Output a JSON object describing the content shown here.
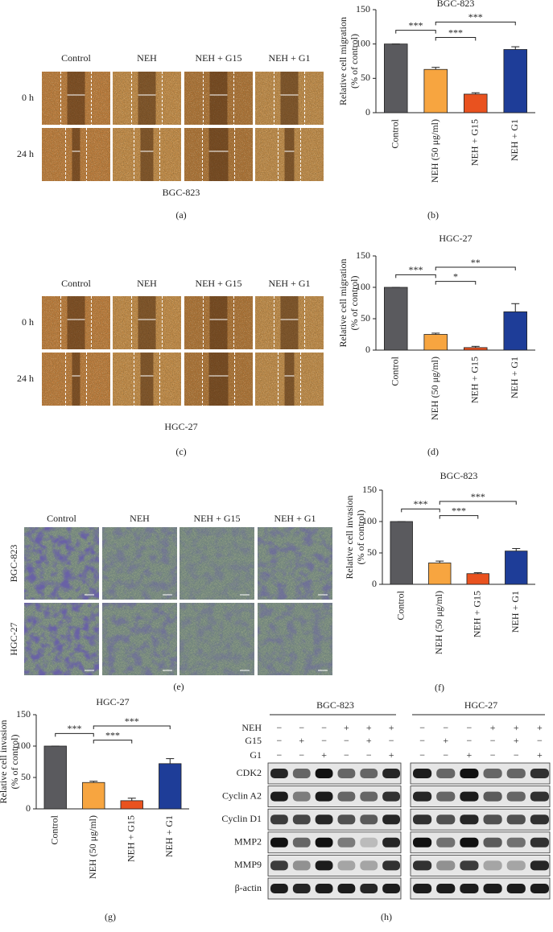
{
  "panel_labels": [
    "(a)",
    "(b)",
    "(c)",
    "(d)",
    "(e)",
    "(f)",
    "(g)",
    "(h)"
  ],
  "wound": [
    {
      "columns": [
        "Control",
        "NEH",
        "NEH + G15",
        "NEH + G1"
      ],
      "rows": [
        "0 h",
        "24 h"
      ],
      "caption": "BGC-823"
    },
    {
      "columns": [
        "Control",
        "NEH",
        "NEH + G15",
        "NEH + G1"
      ],
      "rows": [
        "0 h",
        "24 h"
      ],
      "caption": "HGC-27"
    }
  ],
  "invasion": {
    "columns": [
      "Control",
      "NEH",
      "NEH + G15",
      "NEH + G1"
    ],
    "rows": [
      "BGC-823",
      "HGC-27"
    ]
  },
  "chart_data": [
    {
      "type": "bar",
      "title": "BGC-823",
      "ylabel": [
        "Relative cell migration",
        "(% of control)"
      ],
      "categories": [
        "Control",
        "NEH (50 μg/ml)",
        "NEH + G15",
        "NEH + G1"
      ],
      "values": [
        100,
        63,
        27,
        92
      ],
      "errors": [
        0,
        3,
        2,
        4
      ],
      "colors": [
        "#5a5a5e",
        "#f7a540",
        "#e9521f",
        "#1e3d98"
      ],
      "ylim": [
        0,
        150
      ],
      "yticks": [
        0,
        50,
        100,
        150
      ],
      "significance": [
        {
          "pair": [
            0,
            1
          ],
          "label": "***"
        },
        {
          "pair": [
            1,
            2
          ],
          "label": "***"
        },
        {
          "pair": [
            1,
            3
          ],
          "label": "***"
        }
      ]
    },
    {
      "type": "bar",
      "title": "HGC-27",
      "ylabel": [
        "Relative cell migration",
        "(% of control)"
      ],
      "categories": [
        "Control",
        "NEH (50 μg/ml)",
        "NEH + G15",
        "NEH + G1"
      ],
      "values": [
        100,
        25,
        4,
        61
      ],
      "errors": [
        0,
        2,
        2,
        13
      ],
      "colors": [
        "#5a5a5e",
        "#f7a540",
        "#e9521f",
        "#1e3d98"
      ],
      "ylim": [
        0,
        150
      ],
      "yticks": [
        0,
        50,
        100,
        150
      ],
      "significance": [
        {
          "pair": [
            0,
            1
          ],
          "label": "***"
        },
        {
          "pair": [
            1,
            2
          ],
          "label": "*"
        },
        {
          "pair": [
            1,
            3
          ],
          "label": "**"
        }
      ]
    },
    {
      "type": "bar",
      "title": "BGC-823",
      "ylabel": [
        "Relative cell invasion",
        "(% of control)"
      ],
      "categories": [
        "Control",
        "NEH (50 μg/ml)",
        "NEH + G15",
        "NEH + G1"
      ],
      "values": [
        100,
        34,
        17,
        53
      ],
      "errors": [
        0,
        3,
        1.5,
        4
      ],
      "colors": [
        "#5a5a5e",
        "#f7a540",
        "#e9521f",
        "#1e3d98"
      ],
      "ylim": [
        0,
        150
      ],
      "yticks": [
        0,
        50,
        100,
        150
      ],
      "significance": [
        {
          "pair": [
            0,
            1
          ],
          "label": "***"
        },
        {
          "pair": [
            1,
            2
          ],
          "label": "***"
        },
        {
          "pair": [
            1,
            3
          ],
          "label": "***"
        }
      ]
    },
    {
      "type": "bar",
      "title": "HGC-27",
      "ylabel": [
        "Relative cell invasion",
        "(% of control)"
      ],
      "categories": [
        "Control",
        "NEH (50 μg/ml)",
        "NEH + G15",
        "NEH + G1"
      ],
      "values": [
        100,
        42,
        13,
        72
      ],
      "errors": [
        0,
        2,
        4,
        8
      ],
      "colors": [
        "#5a5a5e",
        "#f7a540",
        "#e9521f",
        "#1e3d98"
      ],
      "ylim": [
        0,
        150
      ],
      "yticks": [
        0,
        50,
        100,
        150
      ],
      "significance": [
        {
          "pair": [
            0,
            1
          ],
          "label": "***"
        },
        {
          "pair": [
            1,
            2
          ],
          "label": "***"
        },
        {
          "pair": [
            1,
            3
          ],
          "label": "***"
        }
      ]
    }
  ],
  "blot": {
    "groups": [
      "BGC-823",
      "HGC-27"
    ],
    "treatments": [
      {
        "name": "NEH",
        "signs": [
          "−",
          "−",
          "−",
          "+",
          "+",
          "+"
        ]
      },
      {
        "name": "G15",
        "signs": [
          "−",
          "+",
          "−",
          "−",
          "+",
          "−"
        ]
      },
      {
        "name": "G1",
        "signs": [
          "−",
          "−",
          "+",
          "−",
          "−",
          "+"
        ]
      }
    ],
    "proteins": [
      "CDK2",
      "Cyclin A2",
      "Cyclin D1",
      "MMP2",
      "MMP9",
      "β-actin"
    ]
  }
}
